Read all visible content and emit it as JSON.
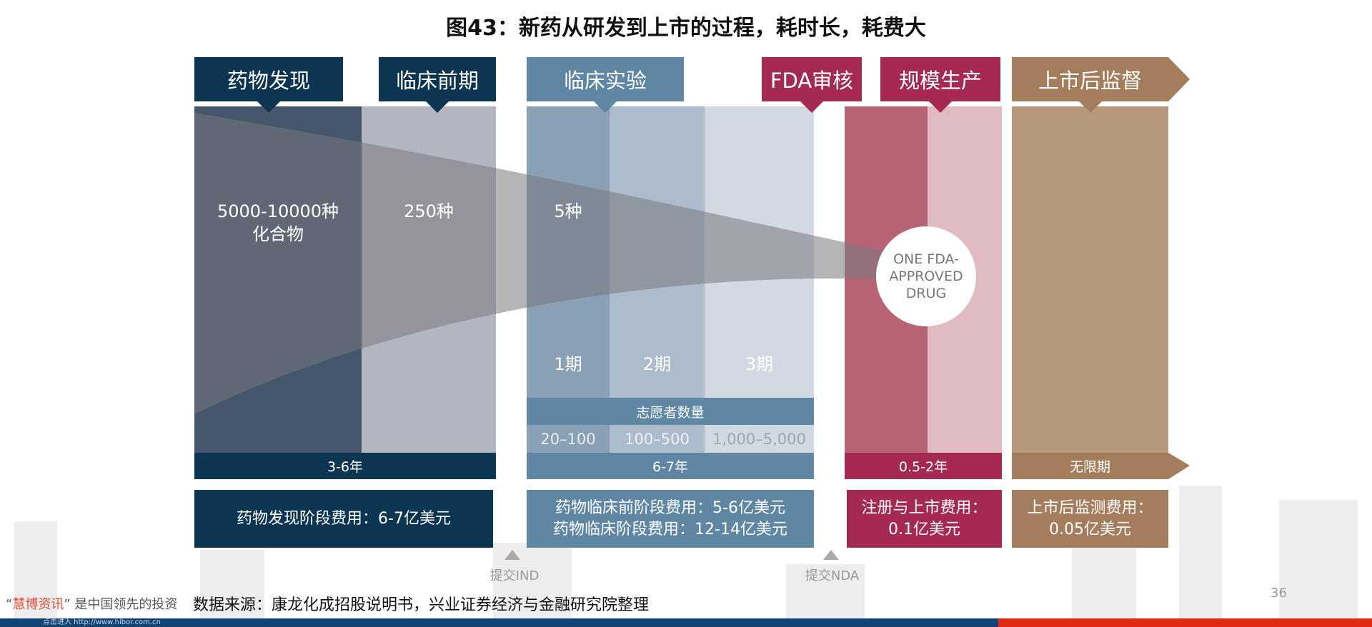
{
  "title": "图43：新药从研发到上市的过程，耗时长，耗费大",
  "stages": [
    {
      "label": "药物发现",
      "count": "5000-10000种",
      "count2": "化合物"
    },
    {
      "label": "临床前期",
      "count": "250种"
    },
    {
      "label": "临床实验",
      "count": "5种"
    },
    {
      "label": "FDA审核"
    },
    {
      "label": "规模生产"
    },
    {
      "label": "上市后监督"
    }
  ],
  "phases": [
    "1期",
    "2期",
    "3期"
  ],
  "volunteers": {
    "label": "志愿者数量",
    "values": [
      "20–100",
      "100–500",
      "1,000–5,000"
    ]
  },
  "durations": [
    "3-6年",
    "6-7年",
    "0.5-2年",
    "无限期"
  ],
  "costs": [
    [
      "药物发现阶段费用：6-7亿美元"
    ],
    [
      "药物临床前阶段费用：5-6亿美元",
      "药物临床阶段费用：12-14亿美元"
    ],
    [
      "注册与上市费用：",
      "0.1亿美元"
    ],
    [
      "上市后监测费用：",
      "0.05亿美元"
    ]
  ],
  "approved": [
    "ONE FDA-",
    "APPROVED",
    "DRUG"
  ],
  "milestones": [
    "提交IND",
    "提交NDA"
  ],
  "source": "数据来源：康龙化成招股说明书，兴业证券经济与金融研究院整理",
  "watermark": {
    "brand": "慧博资讯",
    "text": "是中国领先的投资",
    "link": "点击进入 http://www.hibor.com.cn"
  },
  "page_number": "36",
  "colors": {
    "navy": "#0b3550",
    "steel": "#5f86a3",
    "crimson": "#a52a52",
    "brown": "#a47e5c"
  }
}
